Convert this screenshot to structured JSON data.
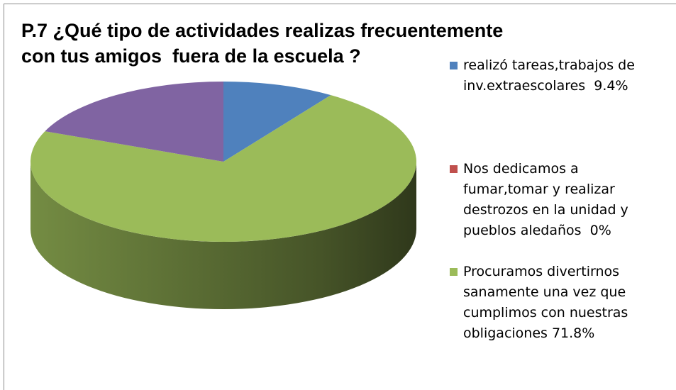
{
  "chart_data": {
    "type": "pie",
    "title": [
      "P.7 ¿Qué tipo de actividades realizas frecuentemente",
      "con tus amigos  fuera de la escuela ?"
    ],
    "categories": [
      "realizó tareas,trabajos de inv.extraescolares  9.4%",
      "Nos dedicamos a fumar,tomar y realizar destrozos en la unidad y pueblos aledaños  0%",
      "Procuramos divertirnos sanamente una vez que cumplimos con nuestras obligaciones 71.8%",
      null
    ],
    "values": [
      9.4,
      0,
      71.8,
      18.8
    ],
    "colors": [
      "#4f81bd",
      "#c0504d",
      "#9bbb59",
      "#8064a2"
    ],
    "legend": "right"
  }
}
